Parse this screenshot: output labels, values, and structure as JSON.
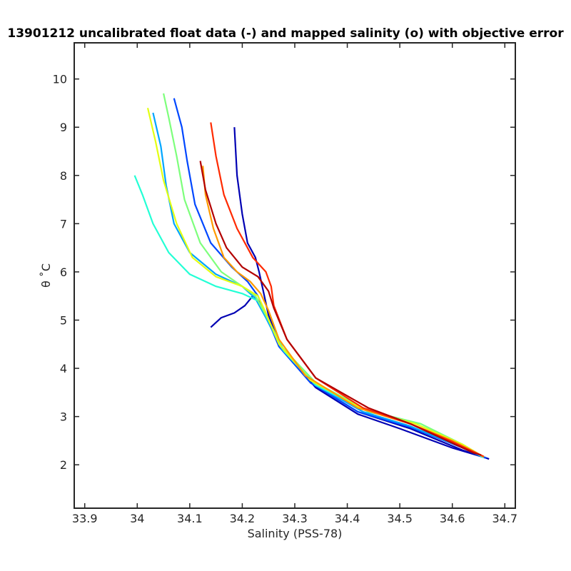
{
  "chart_data": {
    "type": "line",
    "title": "13901212 uncalibrated float data (-) and mapped salinity (o) with objective error",
    "xlabel": "Salinity (PSS-78)",
    "ylabel": "θ ˚C",
    "xlim": [
      33.88,
      34.72
    ],
    "ylim": [
      1.1,
      10.75
    ],
    "x_ticks": [
      "33.9",
      "34",
      "34.1",
      "34.2",
      "34.3",
      "34.4",
      "34.5",
      "34.6",
      "34.7"
    ],
    "y_ticks": [
      "2",
      "3",
      "4",
      "5",
      "6",
      "7",
      "8",
      "9",
      "10"
    ],
    "grid": false,
    "colormap": "jet",
    "line_colors": [
      "#0000b3",
      "#0047ff",
      "#00a6ff",
      "#23ffd5",
      "#7dff7b",
      "#e3ff13",
      "#ff9a00",
      "#ff2a00",
      "#b30000"
    ],
    "series": [
      {
        "color": "#0000b3",
        "x": [
          34.185,
          34.19,
          34.2,
          34.21,
          34.225,
          34.232,
          34.24,
          34.25,
          34.275,
          34.33,
          34.42,
          34.52,
          34.62,
          34.67
        ],
        "y": [
          9.0,
          8.0,
          7.2,
          6.6,
          6.3,
          6.0,
          5.6,
          5.1,
          4.4,
          3.7,
          3.1,
          2.75,
          2.3,
          2.12
        ]
      },
      {
        "color": "#0000b3",
        "x": [
          34.14,
          34.16,
          34.185,
          34.205,
          34.22,
          34.235,
          34.25,
          34.28,
          34.34,
          34.42,
          34.5,
          34.6,
          34.665
        ],
        "y": [
          4.85,
          5.05,
          5.15,
          5.3,
          5.5,
          5.35,
          5.0,
          4.35,
          3.6,
          3.05,
          2.75,
          2.35,
          2.14
        ]
      },
      {
        "color": "#0047ff",
        "x": [
          34.07,
          34.085,
          34.095,
          34.11,
          34.14,
          34.18,
          34.21,
          34.23,
          34.245,
          34.27,
          34.33,
          34.42,
          34.52,
          34.62,
          34.665
        ],
        "y": [
          9.6,
          9.0,
          8.3,
          7.4,
          6.6,
          6.1,
          5.8,
          5.5,
          5.1,
          4.45,
          3.7,
          3.1,
          2.78,
          2.35,
          2.14
        ]
      },
      {
        "color": "#00a6ff",
        "x": [
          34.03,
          34.045,
          34.055,
          34.07,
          34.1,
          34.15,
          34.2,
          34.225,
          34.245,
          34.275,
          34.34,
          34.43,
          34.52,
          34.61,
          34.66
        ],
        "y": [
          9.3,
          8.6,
          7.8,
          7.0,
          6.4,
          5.95,
          5.7,
          5.45,
          5.05,
          4.4,
          3.65,
          3.1,
          2.8,
          2.4,
          2.15
        ]
      },
      {
        "color": "#23ffd5",
        "x": [
          33.995,
          34.01,
          34.03,
          34.06,
          34.1,
          34.15,
          34.2,
          34.23,
          34.25,
          34.28,
          34.34,
          34.44,
          34.54,
          34.62,
          34.66
        ],
        "y": [
          8.0,
          7.6,
          7.0,
          6.4,
          5.95,
          5.7,
          5.55,
          5.4,
          5.0,
          4.35,
          3.65,
          3.1,
          2.85,
          2.4,
          2.15
        ]
      },
      {
        "color": "#7dff7b",
        "x": [
          34.05,
          34.06,
          34.075,
          34.09,
          34.12,
          34.16,
          34.2,
          34.225,
          34.245,
          34.275,
          34.34,
          34.44,
          34.54,
          34.62,
          34.66
        ],
        "y": [
          9.7,
          9.2,
          8.4,
          7.5,
          6.6,
          6.0,
          5.7,
          5.5,
          5.1,
          4.45,
          3.7,
          3.12,
          2.85,
          2.42,
          2.16
        ]
      },
      {
        "color": "#e3ff13",
        "x": [
          34.02,
          34.035,
          34.05,
          34.075,
          34.105,
          34.15,
          34.2,
          34.23,
          34.245,
          34.27,
          34.33,
          34.43,
          34.53,
          34.62,
          34.66
        ],
        "y": [
          9.4,
          8.7,
          7.9,
          7.0,
          6.3,
          5.9,
          5.7,
          5.5,
          5.15,
          4.5,
          3.75,
          3.15,
          2.85,
          2.42,
          2.16
        ]
      },
      {
        "color": "#ff9a00",
        "x": [
          34.125,
          34.13,
          34.145,
          34.165,
          34.19,
          34.215,
          34.235,
          34.25,
          34.27,
          34.32,
          34.42,
          34.52,
          34.6,
          34.66
        ],
        "y": [
          8.2,
          7.6,
          6.9,
          6.3,
          6.0,
          5.8,
          5.55,
          5.2,
          4.6,
          3.85,
          3.18,
          2.85,
          2.5,
          2.17
        ]
      },
      {
        "color": "#ff2a00",
        "x": [
          34.14,
          34.15,
          34.165,
          34.19,
          34.22,
          34.245,
          34.255,
          34.26,
          34.285,
          34.34,
          34.43,
          34.52,
          34.6,
          34.66
        ],
        "y": [
          9.1,
          8.4,
          7.6,
          6.9,
          6.3,
          6.0,
          5.7,
          5.3,
          4.6,
          3.8,
          3.18,
          2.85,
          2.48,
          2.17
        ]
      },
      {
        "color": "#b30000",
        "x": [
          34.12,
          34.13,
          34.15,
          34.17,
          34.2,
          34.23,
          34.25,
          34.26,
          34.285,
          34.34,
          34.44,
          34.52,
          34.58,
          34.64,
          34.655
        ],
        "y": [
          8.3,
          7.7,
          7.0,
          6.5,
          6.1,
          5.9,
          5.6,
          5.25,
          4.6,
          3.8,
          3.18,
          2.85,
          2.55,
          2.25,
          2.2
        ]
      }
    ]
  }
}
